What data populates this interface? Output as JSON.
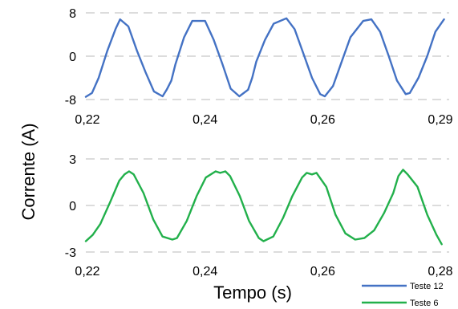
{
  "colors": {
    "blue": "#4472c4",
    "green": "#22b04b",
    "grid": "#c8c8c8"
  },
  "ylabel": "Corrente (A)",
  "xlabel": "Tempo (s)",
  "legend": [
    "Teste 12",
    "Teste 6"
  ],
  "chart_data": [
    {
      "type": "line",
      "panel": "top",
      "grid": "horizontal-dashed",
      "xlim": [
        0.22,
        0.291
      ],
      "ylim": [
        -8,
        8
      ],
      "x_ticks": [
        "0,22",
        "0,24",
        "0,26",
        "0,29"
      ],
      "y_ticks": [
        "8",
        "0",
        "-8"
      ],
      "series": [
        {
          "name": "Teste 12",
          "color": "#4472c4",
          "x": [
            0.22,
            0.2212,
            0.2225,
            0.2242,
            0.2258,
            0.2267,
            0.2283,
            0.23,
            0.2317,
            0.2333,
            0.235,
            0.2358,
            0.2367,
            0.2375,
            0.2392,
            0.2408,
            0.2433,
            0.245,
            0.2467,
            0.2483,
            0.25,
            0.2517,
            0.2525,
            0.2533,
            0.255,
            0.2567,
            0.2592,
            0.2608,
            0.2625,
            0.2642,
            0.2658,
            0.2667,
            0.2683,
            0.27,
            0.2717,
            0.2742,
            0.2758,
            0.2775,
            0.2792,
            0.2808,
            0.2825,
            0.2833,
            0.285,
            0.2867,
            0.2883,
            0.29
          ],
          "y": [
            -7.5,
            -6.8,
            -4.0,
            1.0,
            5.0,
            6.8,
            5.5,
            1.0,
            -3.0,
            -6.5,
            -7.4,
            -6.2,
            -4.5,
            -1.5,
            3.5,
            6.5,
            6.5,
            3.0,
            -1.5,
            -6.0,
            -7.4,
            -6.2,
            -4.0,
            -1.0,
            3.0,
            6.0,
            7.0,
            5.0,
            0.5,
            -4.0,
            -7.0,
            -7.4,
            -5.5,
            -1.0,
            3.5,
            6.5,
            6.8,
            4.5,
            0.0,
            -4.5,
            -7.0,
            -6.8,
            -4.0,
            0.0,
            4.5,
            6.8
          ]
        }
      ]
    },
    {
      "type": "line",
      "panel": "bottom",
      "grid": "horizontal-dashed",
      "xlim": [
        0.22,
        0.283
      ],
      "ylim": [
        -3,
        3
      ],
      "x_ticks": [
        "0,22",
        "0,24",
        "0,26",
        "0,28"
      ],
      "y_ticks": [
        "3",
        "0",
        "-3"
      ],
      "series": [
        {
          "name": "Teste 6",
          "color": "#22b04b",
          "x": [
            0.22,
            0.2212,
            0.2225,
            0.2242,
            0.2258,
            0.2267,
            0.2275,
            0.2283,
            0.23,
            0.2317,
            0.2333,
            0.235,
            0.2358,
            0.2375,
            0.2392,
            0.2408,
            0.2425,
            0.2433,
            0.2442,
            0.245,
            0.2467,
            0.2483,
            0.25,
            0.2508,
            0.2525,
            0.2542,
            0.2558,
            0.2575,
            0.2583,
            0.2592,
            0.26,
            0.2617,
            0.2633,
            0.265,
            0.2667,
            0.2683,
            0.27,
            0.2717,
            0.2733,
            0.2742,
            0.275,
            0.2758,
            0.2775,
            0.2792,
            0.2808,
            0.2817
          ],
          "y": [
            -2.3,
            -1.9,
            -1.2,
            0.2,
            1.6,
            2.0,
            2.2,
            2.0,
            0.8,
            -0.9,
            -2.0,
            -2.2,
            -2.1,
            -1.0,
            0.6,
            1.8,
            2.2,
            2.1,
            2.2,
            1.9,
            0.6,
            -1.0,
            -2.1,
            -2.3,
            -2.0,
            -0.8,
            0.6,
            1.8,
            2.1,
            2.0,
            2.1,
            1.2,
            -0.6,
            -1.8,
            -2.2,
            -2.1,
            -1.6,
            -0.5,
            0.8,
            1.9,
            2.3,
            2.0,
            1.2,
            -0.6,
            -1.9,
            -2.5
          ]
        }
      ]
    }
  ]
}
